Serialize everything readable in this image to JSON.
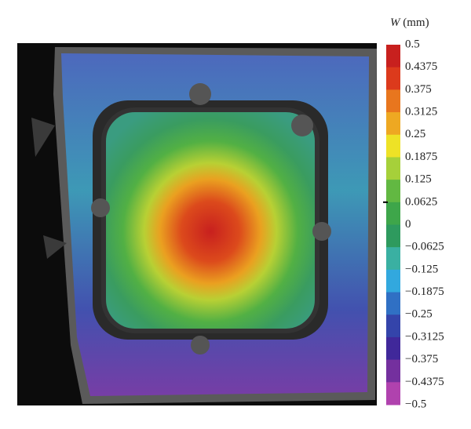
{
  "colorbar": {
    "symbol": "W",
    "unit": "(mm)",
    "labels": [
      "0.5",
      "0.4375",
      "0.375",
      "0.3125",
      "0.25",
      "0.1875",
      "0.125",
      "0.0625",
      "0",
      "−0.0625",
      "−0.125",
      "−0.1875",
      "−0.25",
      "−0.3125",
      "−0.375",
      "−0.4375",
      "−0.5"
    ],
    "colors": [
      "#c8201e",
      "#dc3a1c",
      "#e8761e",
      "#eea822",
      "#eee226",
      "#a6d03a",
      "#62b842",
      "#3ea64a",
      "#2e9a5e",
      "#3ab0a2",
      "#32a8de",
      "#3070c4",
      "#3444aa",
      "#40289a",
      "#74309e",
      "#b042ae"
    ]
  }
}
